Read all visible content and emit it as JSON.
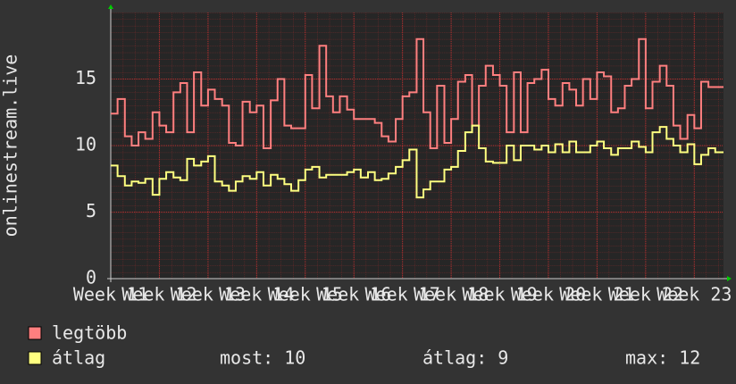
{
  "chart_data": {
    "type": "step",
    "y_label": "onlinestream.live",
    "x": [
      11,
      11.14,
      11.29,
      11.43,
      11.57,
      11.71,
      11.86,
      12,
      12.14,
      12.29,
      12.43,
      12.57,
      12.71,
      12.86,
      13,
      13.14,
      13.29,
      13.43,
      13.57,
      13.71,
      13.86,
      14,
      14.14,
      14.29,
      14.43,
      14.57,
      14.71,
      14.86,
      15,
      15.14,
      15.29,
      15.43,
      15.57,
      15.71,
      15.86,
      16,
      16.14,
      16.29,
      16.43,
      16.57,
      16.71,
      16.86,
      17,
      17.14,
      17.29,
      17.43,
      17.57,
      17.71,
      17.86,
      18,
      18.14,
      18.29,
      18.43,
      18.57,
      18.71,
      18.86,
      19,
      19.14,
      19.29,
      19.43,
      19.57,
      19.71,
      19.86,
      20,
      20.14,
      20.29,
      20.43,
      20.57,
      20.71,
      20.86,
      21,
      21.14,
      21.29,
      21.43,
      21.57,
      21.71,
      21.86,
      22,
      22.14,
      22.29,
      22.43,
      22.57,
      22.71,
      22.86,
      23,
      23.14,
      23.29,
      23.43
    ],
    "series": [
      {
        "name": "legtöbb",
        "color": "#ff7f7f",
        "values": [
          12.4,
          13.5,
          10.7,
          10,
          11,
          10.5,
          12.5,
          11.5,
          11,
          14,
          14.7,
          11,
          15.5,
          13,
          14.2,
          13.5,
          13,
          10.2,
          10,
          13.3,
          12.5,
          13,
          9.8,
          13.4,
          15,
          11.5,
          11.3,
          11.3,
          15.3,
          12.8,
          17.5,
          13.7,
          12.5,
          13.7,
          12.7,
          12,
          12,
          12,
          11.7,
          10.7,
          10.3,
          12,
          13.7,
          14,
          18,
          12.5,
          9.8,
          14.5,
          10.2,
          12,
          14.8,
          15.3,
          11.5,
          14.5,
          16,
          15.3,
          14.5,
          11,
          15.5,
          11,
          14.7,
          15,
          15.7,
          13.5,
          13,
          14.7,
          14.2,
          13,
          15,
          13.5,
          15.5,
          15.2,
          12.5,
          12.8,
          14.5,
          15,
          18,
          12.8,
          14.8,
          16,
          14.5,
          11.5,
          10.5,
          12.3,
          11.3,
          14.8,
          14.4,
          14.4
        ]
      },
      {
        "name": "átlag",
        "color": "#ffff80",
        "values": [
          8.5,
          7.7,
          7,
          7.3,
          7.2,
          7.5,
          6.3,
          7.5,
          8,
          7.6,
          7.4,
          9,
          8.5,
          8.8,
          9.2,
          7.3,
          7,
          6.6,
          7.3,
          7.7,
          7.5,
          8,
          7,
          7.8,
          7.5,
          7.1,
          6.6,
          7.4,
          8.2,
          8.4,
          7.6,
          7.8,
          7.8,
          7.8,
          8,
          8.2,
          7.6,
          8,
          7.4,
          7.5,
          7.9,
          8.4,
          8.9,
          9.7,
          6.1,
          6.7,
          7.3,
          7.3,
          8.2,
          8.4,
          9.6,
          11,
          11.5,
          9.8,
          8.8,
          8.7,
          8.7,
          10,
          8.9,
          10,
          10,
          9.7,
          10,
          9.5,
          10.1,
          9.5,
          10.3,
          9.5,
          9.5,
          10,
          10.3,
          9.8,
          9.3,
          9.8,
          9.8,
          10.3,
          9.9,
          9.5,
          11,
          11.4,
          10.5,
          10,
          9.5,
          10.1,
          8.6,
          9.3,
          9.8,
          9.5
        ]
      }
    ],
    "xlim": [
      11,
      23.6
    ],
    "xticks": [
      {
        "value": 11,
        "label": "Week 11"
      },
      {
        "value": 12,
        "label": "Week 12"
      },
      {
        "value": 13,
        "label": "Week 13"
      },
      {
        "value": 14,
        "label": "Week 14"
      },
      {
        "value": 15,
        "label": "Week 15"
      },
      {
        "value": 16,
        "label": "Week 16"
      },
      {
        "value": 17,
        "label": "Week 17"
      },
      {
        "value": 18,
        "label": "Week 18"
      },
      {
        "value": 19,
        "label": "Week 19"
      },
      {
        "value": 20,
        "label": "Week 20"
      },
      {
        "value": 21,
        "label": "Week 21"
      },
      {
        "value": 22,
        "label": "Week 22"
      },
      {
        "value": 23,
        "label": "Week 23"
      }
    ],
    "ylim": [
      0,
      20
    ],
    "yticks": [
      0,
      5,
      10,
      15
    ],
    "grid": true,
    "stats": [
      "most: 10",
      "átlag: 9",
      "max: 12"
    ]
  }
}
